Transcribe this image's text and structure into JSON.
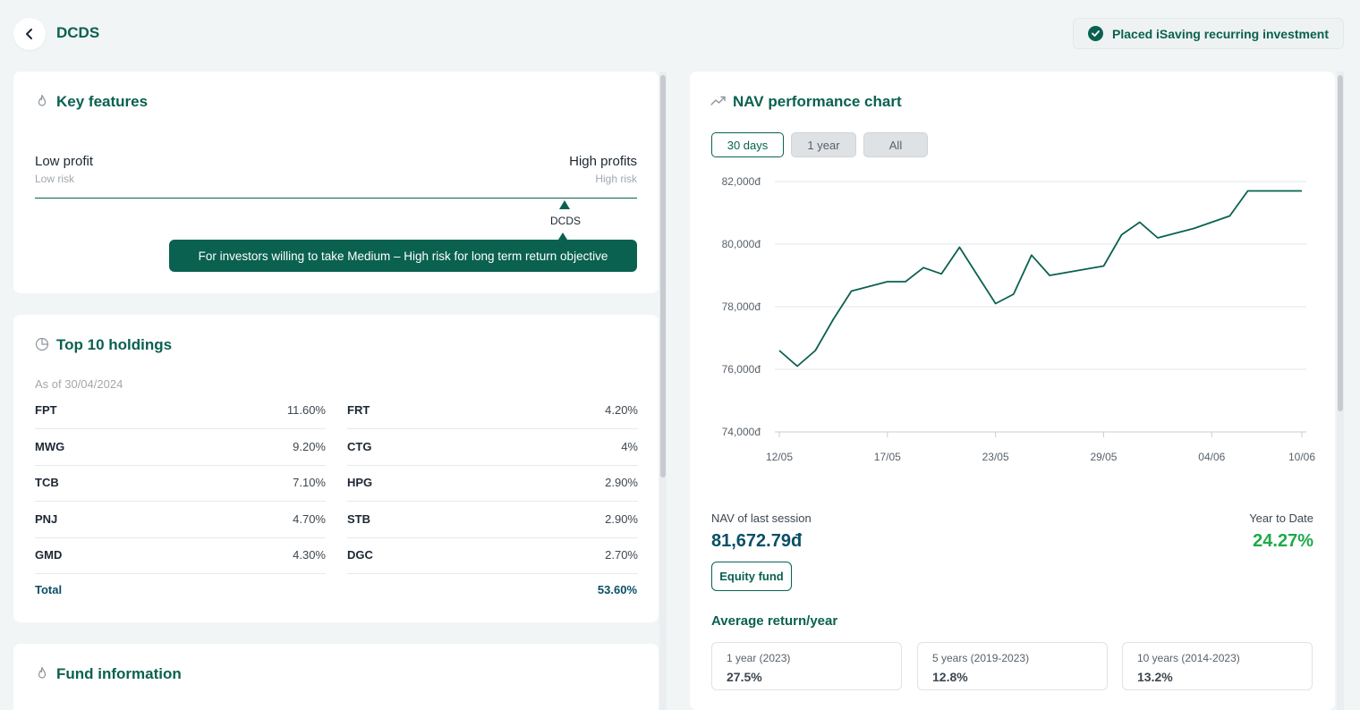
{
  "header": {
    "title": "DCDS",
    "status": "Placed iSaving recurring investment"
  },
  "key_features": {
    "title": "Key features",
    "low_label": "Low profit",
    "low_sub": "Low risk",
    "high_label": "High profits",
    "high_sub": "High risk",
    "fund_code": "DCDS",
    "tooltip": "For investors willing to take Medium – High risk for long term return objective"
  },
  "holdings": {
    "title": "Top 10 holdings",
    "as_of": "As of 30/04/2024",
    "left": [
      {
        "symbol": "FPT",
        "pct": "11.60%"
      },
      {
        "symbol": "MWG",
        "pct": "9.20%"
      },
      {
        "symbol": "TCB",
        "pct": "7.10%"
      },
      {
        "symbol": "PNJ",
        "pct": "4.70%"
      },
      {
        "symbol": "GMD",
        "pct": "4.30%"
      }
    ],
    "right": [
      {
        "symbol": "FRT",
        "pct": "4.20%"
      },
      {
        "symbol": "CTG",
        "pct": "4%"
      },
      {
        "symbol": "HPG",
        "pct": "2.90%"
      },
      {
        "symbol": "STB",
        "pct": "2.90%"
      },
      {
        "symbol": "DGC",
        "pct": "2.70%"
      }
    ],
    "total_label": "Total",
    "total_value": "53.60%"
  },
  "fund_info": {
    "title": "Fund information"
  },
  "nav_chart": {
    "title": "NAV performance chart",
    "tabs": [
      "30 days",
      "1 year",
      "All"
    ],
    "active_tab": "30 days",
    "nav_label": "NAV of last session",
    "nav_value": "81,672.79đ",
    "ytd_label": "Year to Date",
    "ytd_value": "24.27%",
    "fund_type": "Equity fund",
    "avg_title": "Average return/year",
    "returns": [
      {
        "label": "1 year (2023)",
        "value": "27.5%"
      },
      {
        "label": "5 years (2019-2023)",
        "value": "12.8%"
      },
      {
        "label": "10 years (2014-2023)",
        "value": "13.2%"
      }
    ]
  },
  "colors": {
    "brand": "#0a6150",
    "positive": "#1daa4a",
    "nav_value": "#0a4f66"
  },
  "chart_data": {
    "type": "line",
    "title": "NAV performance chart",
    "xlabel": "",
    "ylabel": "",
    "ylim": [
      74000,
      82000
    ],
    "y_ticks": [
      74000,
      76000,
      78000,
      80000,
      82000
    ],
    "y_tick_labels": [
      "74,000đ",
      "76,000đ",
      "78,000đ",
      "80,000đ",
      "82,000đ"
    ],
    "x_tick_labels": [
      "12/05",
      "17/05",
      "23/05",
      "29/05",
      "04/06",
      "10/06"
    ],
    "grid": true,
    "series": [
      {
        "x": [
          "12/05",
          "13/05",
          "14/05",
          "15/05",
          "16/05",
          "17/05",
          "18/05",
          "19/05",
          "20/05",
          "21/05",
          "22/05",
          "23/05",
          "24/05",
          "25/05",
          "26/05",
          "27/05",
          "28/05",
          "29/05",
          "30/05",
          "31/05",
          "01/06",
          "02/06",
          "03/06",
          "04/06",
          "05/06",
          "06/06",
          "07/06",
          "08/06",
          "09/06",
          "10/06"
        ],
        "values": [
          76600,
          76100,
          76600,
          77600,
          78500,
          78650,
          78800,
          78800,
          79250,
          79050,
          79900,
          79000,
          78100,
          78400,
          79650,
          79000,
          79100,
          79200,
          79300,
          80300,
          80700,
          80200,
          80350,
          80500,
          80700,
          80900,
          81700,
          81700,
          81700,
          81700
        ]
      }
    ]
  }
}
